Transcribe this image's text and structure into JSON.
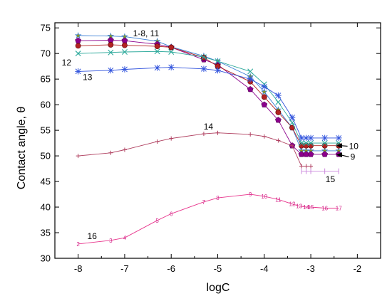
{
  "chart_data": {
    "type": "line",
    "xlabel": "logC",
    "ylabel": "Contact angle, θ",
    "xlim": [
      -8.5,
      -1.5
    ],
    "ylim": [
      30,
      76
    ],
    "xticks": [
      -8,
      -7,
      -6,
      -5,
      -4,
      -3,
      -2
    ],
    "yticks": [
      30,
      35,
      40,
      45,
      50,
      55,
      60,
      65,
      70,
      75
    ],
    "grid": false,
    "series": [
      {
        "name": "1-8, 11",
        "color": "#3a7fd5",
        "marker": "star",
        "x": [
          -8,
          -7.3,
          -7,
          -6.3,
          -6,
          -5.3,
          -5,
          -4.3,
          -4,
          -3.7,
          -3.4,
          -3.2,
          -3.1,
          -3,
          -2.7,
          -2.4
        ],
        "y": [
          73.5,
          73.4,
          73.3,
          72.4,
          71.3,
          69.5,
          68.5,
          65.5,
          62.5,
          59,
          55.5,
          51,
          51,
          51,
          51,
          51
        ]
      },
      {
        "name": "9",
        "color": "#8b008b",
        "marker": "pentagon",
        "x": [
          -8,
          -7.3,
          -7,
          -6.3,
          -6,
          -5.3,
          -5,
          -4.3,
          -4,
          -3.7,
          -3.4,
          -3.2,
          -3.1,
          -3,
          -2.7,
          -2.4
        ],
        "y": [
          72.5,
          72.6,
          72.5,
          71.8,
          71.2,
          68.8,
          67.8,
          63,
          60,
          57,
          52,
          50.3,
          50.3,
          50.3,
          50.3,
          50.3
        ]
      },
      {
        "name": "10",
        "color": "#b22222",
        "marker": "ball",
        "x": [
          -8,
          -7.3,
          -7,
          -6.3,
          -6,
          -5.3,
          -5,
          -4.3,
          -4,
          -3.7,
          -3.4,
          -3.2,
          -3.1,
          -3,
          -2.7,
          -2.4
        ],
        "y": [
          71.5,
          71.7,
          71.6,
          71.4,
          71.2,
          69.2,
          67.5,
          64.5,
          61.5,
          58.5,
          55.5,
          52,
          52,
          52,
          52,
          52
        ]
      },
      {
        "name": "12",
        "color": "#2aa89a",
        "marker": "x",
        "x": [
          -8,
          -7.3,
          -7,
          -6.3,
          -6,
          -5.3,
          -5,
          -4.3,
          -4,
          -3.7,
          -3.4,
          -3.2,
          -3.1,
          -3,
          -2.7,
          -2.4
        ],
        "y": [
          70,
          70.2,
          70.3,
          70.4,
          70.3,
          69.3,
          68.5,
          66.5,
          64,
          60.5,
          56.5,
          52.5,
          52.5,
          52.5,
          52.5,
          52.5
        ]
      },
      {
        "name": "13",
        "color": "#3355dd",
        "marker": "asterisk",
        "x": [
          -8,
          -7.3,
          -7,
          -6.3,
          -6,
          -5.3,
          -5,
          -4.3,
          -4,
          -3.7,
          -3.4,
          -3.2,
          -3.1,
          -3,
          -2.7,
          -2.4
        ],
        "y": [
          66.5,
          66.7,
          66.9,
          67.2,
          67.3,
          67,
          66.7,
          65,
          63.5,
          61.8,
          57.5,
          53.5,
          53.5,
          53.5,
          53.5,
          53.5
        ]
      },
      {
        "name": "14",
        "color": "#b04060",
        "marker": "plus",
        "x": [
          -8,
          -7.3,
          -7,
          -6.3,
          -6,
          -5.3,
          -5,
          -4.3,
          -4,
          -3.7,
          -3.4,
          -3.2,
          -3.1,
          -3
        ],
        "y": [
          50,
          50.6,
          51.2,
          52.8,
          53.4,
          54.3,
          54.5,
          54.2,
          53.8,
          53,
          52,
          48,
          48,
          48
        ]
      },
      {
        "name": "15",
        "color": "#cc88dd",
        "marker": "bar",
        "x": [
          -3.2,
          -3.1,
          -3,
          -2.7,
          -2.4
        ],
        "y": [
          47,
          47,
          47,
          47,
          47
        ]
      },
      {
        "name": "16",
        "color": "#e8348c",
        "marker": "none",
        "x": [
          -8,
          -7.3,
          -7,
          -6.3,
          -6,
          -5.3,
          -5,
          -4.3,
          -4,
          -3.7,
          -3.4,
          -3.25,
          -3.1,
          -3,
          -2.7,
          -2.4
        ],
        "y": [
          32.8,
          33.5,
          34,
          37.4,
          38.7,
          41,
          41.8,
          42.5,
          42.1,
          41.5,
          40.6,
          40.2,
          40,
          40,
          39.8,
          39.8
        ],
        "labels": [
          "2",
          "3",
          "4",
          "5",
          "6",
          "7",
          "8",
          "9",
          "10",
          "11",
          "12",
          "13",
          "14",
          "15",
          "16",
          "17"
        ]
      }
    ],
    "annotations": [
      {
        "text": "1-8, 11",
        "x": -6.82,
        "y": 73.9,
        "anchor": "start"
      },
      {
        "text": "12",
        "x": -8.25,
        "y": 68.2,
        "anchor": "middle"
      },
      {
        "text": "13",
        "x": -7.8,
        "y": 65.4,
        "anchor": "middle"
      },
      {
        "text": "14",
        "x": -5.2,
        "y": 55.7,
        "anchor": "middle"
      },
      {
        "text": "15",
        "x": -2.58,
        "y": 45.4,
        "anchor": "middle"
      },
      {
        "text": "16",
        "x": -7.7,
        "y": 34.3,
        "anchor": "middle"
      },
      {
        "text": "10",
        "x": -2.18,
        "y": 51.9,
        "anchor": "start",
        "arrow_to": [
          -2.45,
          52
        ]
      },
      {
        "text": "9",
        "x": -2.15,
        "y": 49.8,
        "anchor": "start",
        "arrow_to": [
          -2.45,
          50.2
        ]
      }
    ]
  }
}
